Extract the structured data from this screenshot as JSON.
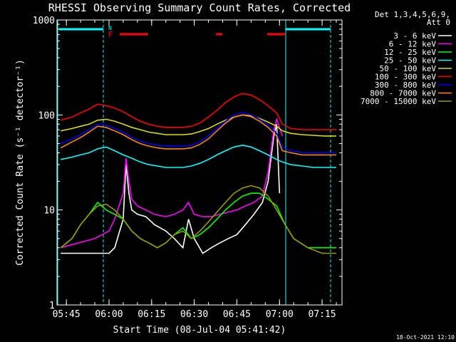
{
  "chart_data": {
    "type": "line",
    "title": "RHESSI Observing Summary Count Rates, Corrected",
    "xlabel": "Start Time (08-Jul-04 05:41:42)",
    "ylabel": "Corrected Count Rate (s⁻¹ detector⁻¹)",
    "y_scale": "log",
    "ylim": [
      1,
      1000
    ],
    "xlim": [
      "05:41:42",
      "07:22:00"
    ],
    "x_tick_labels": [
      "05:45",
      "06:00",
      "06:15",
      "06:30",
      "06:45",
      "07:00",
      "07:15"
    ],
    "y_tick_labels": [
      "1",
      "10",
      "100",
      "1000"
    ],
    "legend_header": [
      "Det 1,3,4,5,6,9,",
      "Att 0"
    ],
    "legend_position": "right",
    "flag_labels": [
      "N",
      "F"
    ],
    "footer_date": "18-Oct-2021 12:10",
    "series": [
      {
        "name": "3 - 6 keV",
        "color": "#ffffff",
        "x": [
          "05:43",
          "05:55",
          "06:00",
          "06:02",
          "06:05",
          "06:06",
          "06:07",
          "06:08",
          "06:10",
          "06:13",
          "06:16",
          "06:20",
          "06:23",
          "06:26",
          "06:28",
          "06:30",
          "06:33",
          "06:36",
          "06:39",
          "06:42",
          "06:45",
          "06:48",
          "06:51",
          "06:54",
          "06:56",
          "06:58",
          "06:59",
          "07:00"
        ],
        "y": [
          3.5,
          3.5,
          3.5,
          4,
          8,
          30,
          15,
          10,
          9,
          8.5,
          7,
          6,
          5,
          4,
          8,
          5,
          3.5,
          4,
          4.5,
          5,
          5.5,
          7,
          9,
          12,
          20,
          60,
          80,
          15
        ]
      },
      {
        "name": "6 - 12 keV",
        "color": "#ff00ff",
        "x": [
          "05:43",
          "05:55",
          "06:00",
          "06:02",
          "06:05",
          "06:06",
          "06:07",
          "06:08",
          "06:10",
          "06:13",
          "06:16",
          "06:20",
          "06:23",
          "06:26",
          "06:28",
          "06:30",
          "06:33",
          "06:36",
          "06:39",
          "06:42",
          "06:45",
          "06:48",
          "06:51",
          "06:54",
          "06:56",
          "06:58",
          "06:59",
          "07:01"
        ],
        "y": [
          4,
          5,
          6,
          8,
          15,
          35,
          20,
          13,
          11,
          10,
          9,
          8.5,
          9,
          10,
          12,
          9,
          8.5,
          8.5,
          9,
          9.5,
          10,
          11,
          12,
          14,
          25,
          70,
          90,
          60
        ]
      },
      {
        "name": "12 - 25 keV",
        "color": "#00ff00",
        "x": [
          "05:43",
          "05:47",
          "05:50",
          "05:53",
          "05:56",
          "05:59",
          "06:02",
          "06:05",
          "06:08",
          "06:11",
          "06:14",
          "06:17",
          "06:20",
          "06:23",
          "06:26",
          "06:29",
          "06:32",
          "06:35",
          "06:38",
          "06:41",
          "06:44",
          "06:47",
          "06:50",
          "06:53",
          "06:56",
          "06:59",
          "07:02",
          "07:05",
          "07:10",
          "07:15",
          "07:20"
        ],
        "y": [
          4,
          5,
          7,
          9,
          12,
          10,
          9,
          8,
          6,
          5,
          4.5,
          4,
          4.5,
          5.5,
          6.5,
          5,
          5.5,
          6.5,
          8,
          10,
          12,
          14,
          15,
          15,
          13,
          11,
          7,
          5,
          4,
          4,
          4
        ]
      },
      {
        "name": "25 - 50 keV",
        "color": "#00ffff",
        "x": [
          "05:43",
          "05:47",
          "05:50",
          "05:53",
          "05:56",
          "05:59",
          "06:02",
          "06:05",
          "06:08",
          "06:11",
          "06:14",
          "06:17",
          "06:20",
          "06:23",
          "06:26",
          "06:29",
          "06:32",
          "06:35",
          "06:38",
          "06:41",
          "06:44",
          "06:47",
          "06:50",
          "06:53",
          "06:56",
          "06:59",
          "07:01",
          "07:04",
          "07:08",
          "07:12",
          "07:16",
          "07:20"
        ],
        "y": [
          34,
          36,
          38,
          40,
          44,
          46,
          42,
          38,
          35,
          32,
          30,
          29,
          28,
          28,
          28,
          29,
          31,
          34,
          38,
          42,
          46,
          48,
          46,
          42,
          38,
          34,
          32,
          30,
          29,
          28,
          28,
          28
        ]
      },
      {
        "name": "50 - 100 keV",
        "color": "#dddd00",
        "x": [
          "05:43",
          "05:47",
          "05:50",
          "05:53",
          "05:56",
          "05:59",
          "06:02",
          "06:05",
          "06:08",
          "06:11",
          "06:14",
          "06:17",
          "06:20",
          "06:23",
          "06:26",
          "06:29",
          "06:32",
          "06:35",
          "06:38",
          "06:41",
          "06:44",
          "06:47",
          "06:50",
          "06:53",
          "06:56",
          "06:59",
          "07:01",
          "07:04",
          "07:08",
          "07:12",
          "07:16",
          "07:20"
        ],
        "y": [
          68,
          72,
          76,
          80,
          88,
          90,
          86,
          80,
          74,
          70,
          66,
          64,
          62,
          62,
          62,
          63,
          67,
          72,
          80,
          88,
          95,
          100,
          98,
          92,
          84,
          76,
          68,
          64,
          62,
          61,
          60,
          60
        ]
      },
      {
        "name": "100 - 300 keV",
        "color": "#ff0000",
        "x": [
          "05:43",
          "05:47",
          "05:50",
          "05:53",
          "05:56",
          "05:59",
          "06:02",
          "06:05",
          "06:08",
          "06:11",
          "06:14",
          "06:17",
          "06:20",
          "06:23",
          "06:26",
          "06:29",
          "06:32",
          "06:35",
          "06:38",
          "06:41",
          "06:44",
          "06:47",
          "06:50",
          "06:53",
          "06:56",
          "06:59",
          "07:01",
          "07:04",
          "07:08",
          "07:12",
          "07:16",
          "07:20"
        ],
        "y": [
          88,
          95,
          105,
          115,
          130,
          125,
          118,
          108,
          96,
          86,
          80,
          76,
          74,
          74,
          74,
          76,
          82,
          95,
          112,
          135,
          155,
          168,
          162,
          145,
          125,
          105,
          80,
          72,
          70,
          70,
          70,
          70
        ]
      },
      {
        "name": "300 - 800 keV",
        "color": "#0000ff",
        "x": [
          "05:43",
          "05:47",
          "05:50",
          "05:53",
          "05:56",
          "05:59",
          "06:02",
          "06:05",
          "06:08",
          "06:11",
          "06:14",
          "06:17",
          "06:20",
          "06:23",
          "06:26",
          "06:29",
          "06:32",
          "06:35",
          "06:38",
          "06:41",
          "06:44",
          "06:47",
          "06:50",
          "06:53",
          "06:56",
          "06:59",
          "07:01",
          "07:04",
          "07:08",
          "07:12",
          "07:16",
          "07:20"
        ],
        "y": [
          50,
          56,
          62,
          70,
          80,
          78,
          72,
          66,
          58,
          53,
          50,
          48,
          47,
          47,
          47,
          48,
          52,
          60,
          72,
          86,
          100,
          106,
          100,
          90,
          78,
          64,
          46,
          42,
          40,
          40,
          40,
          40
        ]
      },
      {
        "name": "800 - 7000 keV",
        "color": "#ff8800",
        "x": [
          "05:43",
          "05:47",
          "05:50",
          "05:53",
          "05:56",
          "05:59",
          "06:02",
          "06:05",
          "06:08",
          "06:11",
          "06:14",
          "06:17",
          "06:20",
          "06:23",
          "06:26",
          "06:29",
          "06:32",
          "06:35",
          "06:38",
          "06:41",
          "06:44",
          "06:47",
          "06:50",
          "06:53",
          "06:56",
          "06:59",
          "07:01",
          "07:04",
          "07:08",
          "07:12",
          "07:16",
          "07:20"
        ],
        "y": [
          45,
          52,
          58,
          66,
          76,
          74,
          68,
          62,
          55,
          50,
          47,
          45,
          44,
          44,
          44,
          45,
          49,
          56,
          68,
          82,
          95,
          100,
          96,
          86,
          74,
          60,
          42,
          40,
          38,
          38,
          38,
          38
        ]
      },
      {
        "name": "7000 - 15000 keV",
        "color": "#999900",
        "x": [
          "05:43",
          "05:47",
          "05:50",
          "05:53",
          "05:56",
          "05:59",
          "06:02",
          "06:05",
          "06:08",
          "06:11",
          "06:14",
          "06:17",
          "06:20",
          "06:23",
          "06:26",
          "06:29",
          "06:32",
          "06:35",
          "06:38",
          "06:41",
          "06:44",
          "06:47",
          "06:50",
          "06:53",
          "06:56",
          "06:59",
          "07:02",
          "07:05",
          "07:10",
          "07:15",
          "07:20"
        ],
        "y": [
          4,
          5,
          7,
          9,
          11,
          11.5,
          10,
          8,
          6,
          5,
          4.5,
          4,
          4.5,
          5.5,
          6,
          5,
          6,
          7.5,
          9.5,
          12,
          15,
          17,
          18,
          17,
          14,
          10,
          7,
          5,
          4,
          3.5,
          3.5
        ]
      }
    ]
  }
}
